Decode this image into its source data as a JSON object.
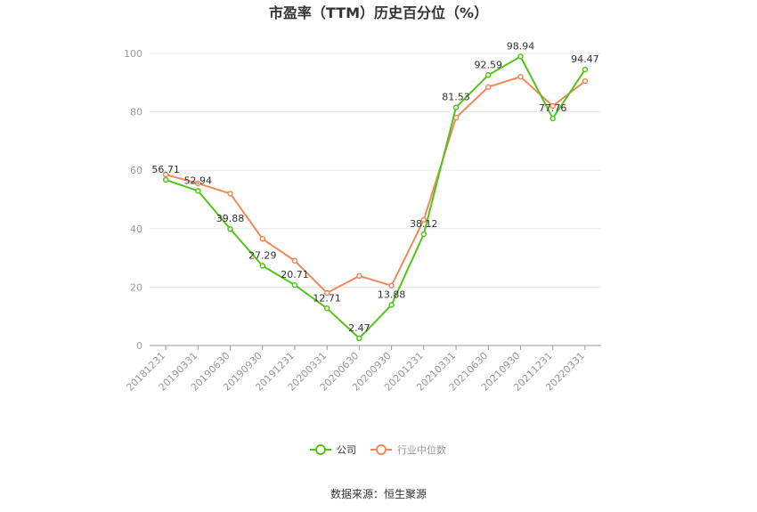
{
  "chart_data": {
    "type": "line",
    "title": "市盈率（TTM）历史百分位（%）",
    "categories": [
      "20181231",
      "20190331",
      "20190630",
      "20190930",
      "20191231",
      "20200331",
      "20200630",
      "20200930",
      "20201231",
      "20210331",
      "20210630",
      "20210930",
      "20211231",
      "20220331"
    ],
    "series": [
      {
        "name": "公司",
        "values": [
          56.71,
          52.94,
          39.88,
          27.29,
          20.71,
          12.71,
          2.47,
          13.88,
          38.12,
          81.53,
          92.59,
          98.94,
          77.76,
          94.47
        ]
      },
      {
        "name": "行业中位数",
        "values": [
          58.5,
          55.5,
          52.0,
          36.5,
          29.0,
          18.0,
          23.8,
          20.5,
          43.0,
          78.0,
          88.5,
          92.0,
          82.0,
          90.5
        ]
      }
    ],
    "ylim": [
      0,
      100
    ],
    "yticks": [
      0,
      20,
      40,
      60,
      80,
      100
    ],
    "grid": true,
    "legend_position": "bottom",
    "colors": {
      "公司": "#52c41a",
      "行业中位数": "#f0895a"
    }
  },
  "source": "数据来源：恒生聚源"
}
